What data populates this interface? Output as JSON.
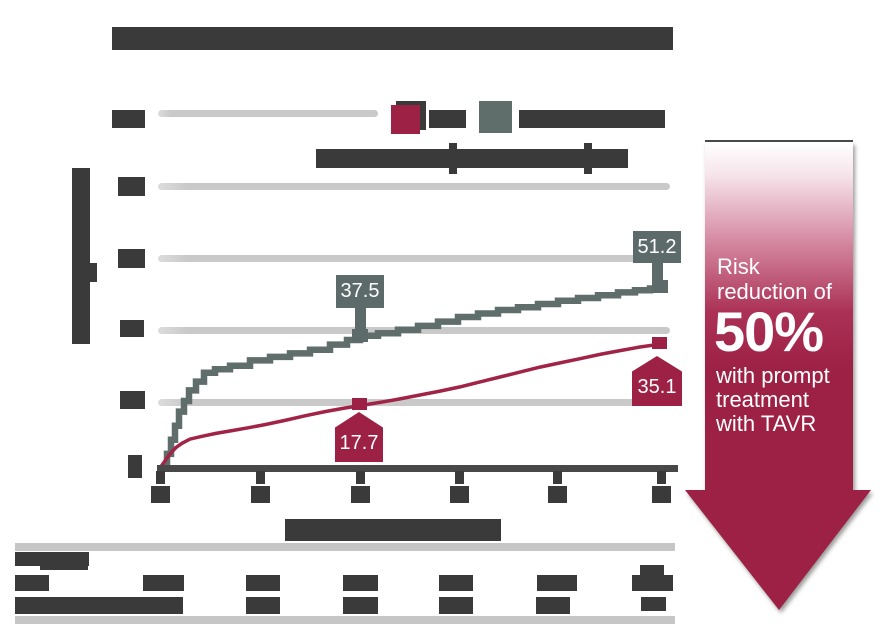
{
  "figure": {
    "type": "clinical-outcomes-figure",
    "text_redaction": "title, legend labels, axis labels, tick labels and at-risk table values are blacked-out bars in the source image"
  },
  "colors": {
    "accent_red": "#9d2145",
    "curve_red": "#a12346",
    "curve_gray": "#5f6e6b",
    "callout_gray": "#5c6b69",
    "redaction_dark": "#3a3a3a",
    "gridline": "#c9c9c9",
    "table_divider": "#c6c6c6",
    "axis_line": "#484848"
  },
  "chart_data": {
    "type": "line",
    "subtype": "kaplan-meier-cumulative-incidence",
    "title_redacted": true,
    "x_axis": {
      "title_redacted": true,
      "tick_count": 6,
      "tick_labels_redacted": true,
      "assumed_range": [
        0,
        5
      ]
    },
    "y_axis": {
      "title_redacted": true,
      "range": [
        0,
        100
      ],
      "tick_labels_redacted": true,
      "gridline_values_estimated": [
        0,
        20,
        40,
        60,
        80,
        100
      ]
    },
    "grid": "horizontal-only",
    "legend": {
      "position": "top",
      "entries": [
        {
          "swatch_color": "#9d2145",
          "label_redacted": true
        },
        {
          "swatch_color": "#5f6e6b",
          "label_redacted": true
        }
      ],
      "subtext_redacted": true
    },
    "series": [
      {
        "id": "gray",
        "label_redacted": true,
        "color": "#5f6e6b",
        "step": true,
        "stroke_width": 6.5,
        "callouts": [
          {
            "x": 2,
            "value": 37.5
          },
          {
            "x": 5,
            "value": 51.2
          }
        ],
        "points_estimated": [
          [
            0,
            0
          ],
          [
            0.07,
            4
          ],
          [
            0.11,
            8
          ],
          [
            0.15,
            12
          ],
          [
            0.19,
            16
          ],
          [
            0.24,
            19
          ],
          [
            0.29,
            22
          ],
          [
            0.36,
            24.5
          ],
          [
            0.44,
            27
          ],
          [
            0.55,
            28
          ],
          [
            0.7,
            29
          ],
          [
            0.9,
            30.5
          ],
          [
            1.1,
            31.5
          ],
          [
            1.3,
            32.5
          ],
          [
            1.5,
            33.5
          ],
          [
            1.7,
            35
          ],
          [
            1.87,
            36.3
          ],
          [
            2,
            37.5
          ],
          [
            2.18,
            38.2
          ],
          [
            2.38,
            39.2
          ],
          [
            2.58,
            40.3
          ],
          [
            2.78,
            41.5
          ],
          [
            2.98,
            42.8
          ],
          [
            3.18,
            43.8
          ],
          [
            3.38,
            44.8
          ],
          [
            3.58,
            45.6
          ],
          [
            3.78,
            46.5
          ],
          [
            3.98,
            47.4
          ],
          [
            4.18,
            48.2
          ],
          [
            4.38,
            49
          ],
          [
            4.58,
            49.8
          ],
          [
            4.75,
            50.4
          ],
          [
            4.9,
            50.9
          ],
          [
            5,
            51.2
          ]
        ]
      },
      {
        "id": "red",
        "label_redacted": true,
        "color": "#a12346",
        "step": false,
        "stroke_width": 3.5,
        "callouts": [
          {
            "x": 2,
            "value": 17.7
          },
          {
            "x": 5,
            "value": 35.1
          }
        ],
        "points_estimated": [
          [
            0,
            0
          ],
          [
            0.05,
            2
          ],
          [
            0.1,
            4
          ],
          [
            0.16,
            5.8
          ],
          [
            0.22,
            7
          ],
          [
            0.3,
            8.2
          ],
          [
            0.42,
            9
          ],
          [
            0.56,
            9.8
          ],
          [
            0.72,
            10.6
          ],
          [
            0.88,
            11.4
          ],
          [
            1.05,
            12.3
          ],
          [
            1.25,
            13.5
          ],
          [
            1.45,
            14.8
          ],
          [
            1.65,
            16
          ],
          [
            1.85,
            17
          ],
          [
            2,
            17.7
          ],
          [
            2.2,
            18.6
          ],
          [
            2.4,
            19.6
          ],
          [
            2.6,
            20.7
          ],
          [
            2.8,
            21.8
          ],
          [
            3,
            23
          ],
          [
            3.2,
            24.4
          ],
          [
            3.4,
            25.8
          ],
          [
            3.6,
            27.2
          ],
          [
            3.8,
            28.6
          ],
          [
            4,
            29.8
          ],
          [
            4.2,
            31
          ],
          [
            4.4,
            32.2
          ],
          [
            4.6,
            33.3
          ],
          [
            4.8,
            34.3
          ],
          [
            5,
            35.1
          ]
        ]
      }
    ]
  },
  "callouts": {
    "gray_mid": "37.5",
    "gray_end": "51.2",
    "red_mid": "17.7",
    "red_end": "35.1"
  },
  "arrow": {
    "top_text": "Risk\nreduction of",
    "big_text": "50%",
    "bottom_text": "with prompt\ntreatment\nwith TAVR",
    "fill": "#9d2145"
  }
}
